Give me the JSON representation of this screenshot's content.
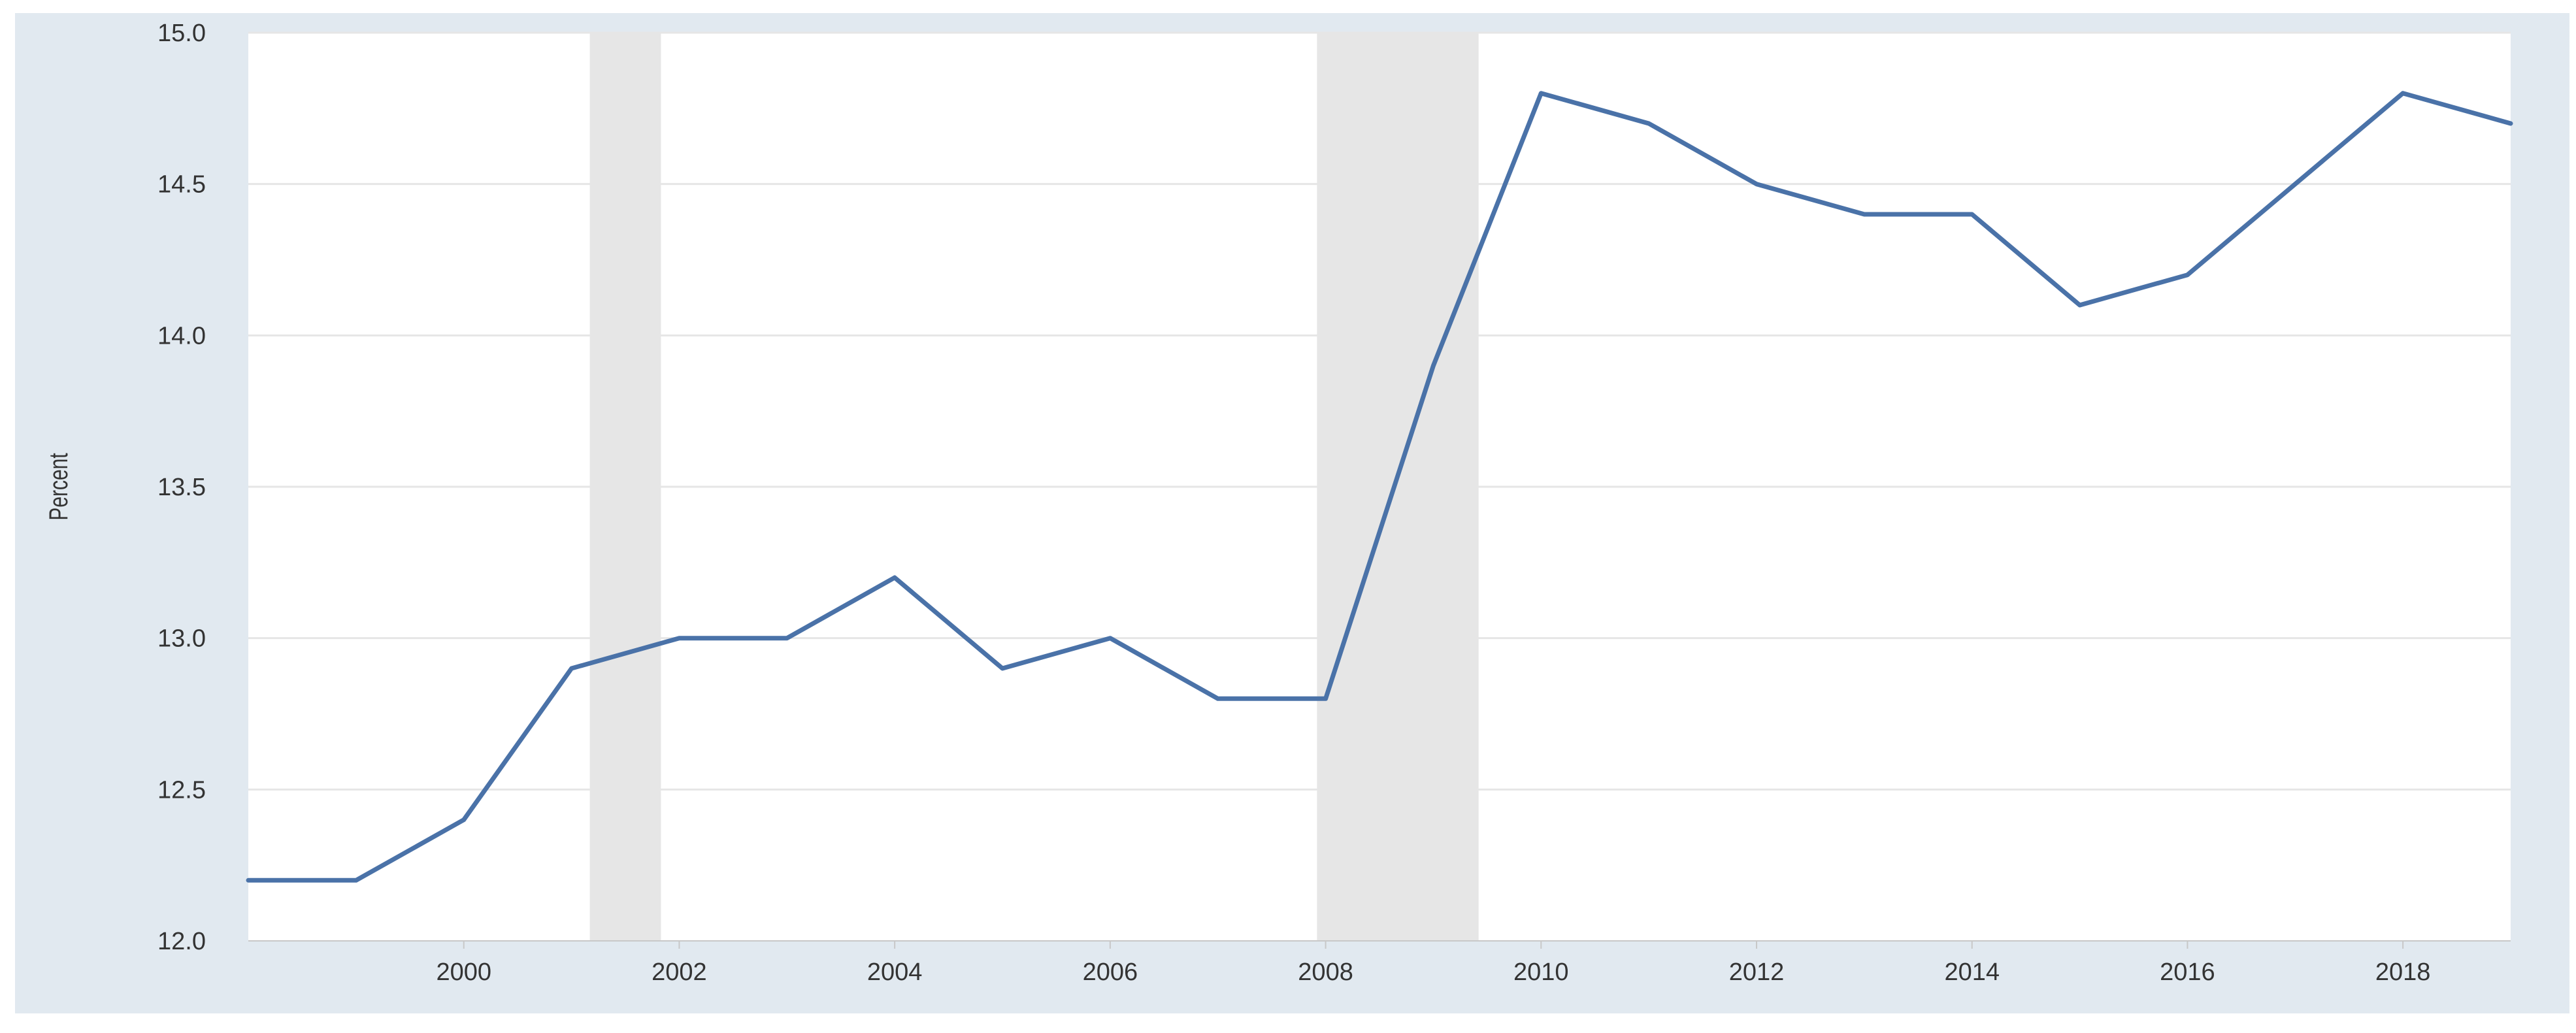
{
  "chart_data": {
    "type": "line",
    "title": "",
    "xlabel": "",
    "ylabel": "Percent",
    "x_range": [
      1998,
      2019
    ],
    "ylim": [
      12.0,
      15.0
    ],
    "y_ticks": [
      "12.0",
      "12.5",
      "13.0",
      "13.5",
      "14.0",
      "14.5",
      "15.0"
    ],
    "x_ticks": [
      "2000",
      "2002",
      "2004",
      "2006",
      "2008",
      "2010",
      "2012",
      "2014",
      "2016",
      "2018"
    ],
    "grid": "horizontal",
    "recession_shading": [
      {
        "start": 2001.17,
        "end": 2001.83
      },
      {
        "start": 2007.92,
        "end": 2009.42
      }
    ],
    "series": [
      {
        "x": [
          1998,
          1999,
          2000,
          2001,
          2002,
          2003,
          2004,
          2005,
          2006,
          2007,
          2008,
          2009,
          2010,
          2011,
          2012,
          2013,
          2014,
          2015,
          2016,
          2017,
          2018,
          2019
        ],
        "values": [
          12.2,
          12.2,
          12.4,
          12.9,
          13.0,
          13.0,
          13.2,
          12.9,
          13.0,
          12.8,
          12.8,
          13.9,
          14.8,
          14.7,
          14.5,
          14.4,
          14.4,
          14.1,
          14.2,
          14.5,
          14.8,
          14.7
        ]
      }
    ],
    "colors": {
      "line": "#4a72a8",
      "recession": "#e6e6e6",
      "frame": "#e1e9f0",
      "plot_background": "#ffffff",
      "grid": "#e6e6e6"
    }
  }
}
